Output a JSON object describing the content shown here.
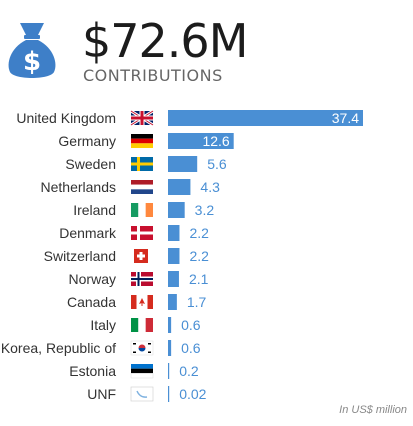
{
  "header": {
    "amount": "$72.6M",
    "subtitle": "CONTRIBUTIONS",
    "icon": "money-bag-icon"
  },
  "colors": {
    "bar": "#4a8fd4",
    "value_inside": "#ffffff",
    "value_outside": "#4a8fd4",
    "icon": "#3e7fc8",
    "label": "#333333"
  },
  "unit_note": "In US$ million",
  "chart_data": {
    "type": "bar",
    "orientation": "horizontal",
    "categories": [
      "United Kingdom",
      "Germany",
      "Sweden",
      "Netherlands",
      "Ireland",
      "Denmark",
      "Switzerland",
      "Norway",
      "Canada",
      "Italy",
      "Korea, Republic of",
      "Estonia",
      "UNF"
    ],
    "values": [
      37.4,
      12.6,
      5.6,
      4.3,
      3.2,
      2.2,
      2.2,
      2.1,
      1.7,
      0.6,
      0.6,
      0.2,
      0.02
    ],
    "value_labels": [
      "37.4",
      "12.6",
      "5.6",
      "4.3",
      "3.2",
      "2.2",
      "2.2",
      "2.1",
      "1.7",
      "0.6",
      "0.6",
      "0.2",
      "0.02"
    ],
    "flags": [
      "uk",
      "de",
      "se",
      "nl",
      "ie",
      "dk",
      "ch",
      "no",
      "ca",
      "it",
      "kr",
      "ee",
      "unf"
    ],
    "xlim": [
      0,
      37.4
    ],
    "grid": false,
    "legend": "none"
  }
}
